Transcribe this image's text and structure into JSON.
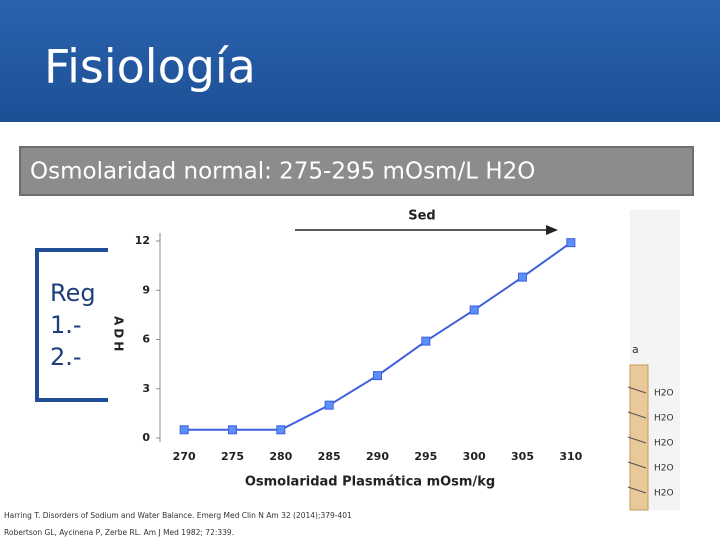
{
  "slide": {
    "title": "Fisiología",
    "banner": "Osmolaridad normal: 275-295 mOsm/L H2O",
    "left_box": [
      "Reg",
      "1.-",
      "2.-"
    ],
    "references": [
      "Harring T. Disorders of Sodium and Water Balance. Emerg Med Clin N Am 32 (2014);379-401",
      "Robertson GL, Aycinena P, Zerbe RL. Am J Med 1982; 72:339."
    ],
    "right_figure": {
      "caption": "a",
      "labels": [
        "H2O",
        "H2O",
        "H2O",
        "H2O",
        "H2O"
      ]
    }
  },
  "chart_data": {
    "type": "line",
    "annotation": "Sed",
    "xlabel": "Osmolaridad Plasmática mOsm/kg",
    "ylabel": "ADH",
    "x": [
      270,
      275,
      280,
      285,
      290,
      295,
      300,
      305,
      310
    ],
    "series": [
      {
        "color": "#3f5fdc",
        "values": [
          0.5,
          0.5,
          0.5,
          2,
          3.8,
          5.9,
          7.8,
          9.8,
          11.9
        ]
      }
    ],
    "xlim": [
      267.5,
      312.5
    ],
    "xticks": [
      270,
      275,
      280,
      285,
      290,
      295,
      300,
      305,
      310
    ],
    "ylim": [
      0,
      12
    ],
    "yticks": [
      0,
      3,
      6,
      9,
      12
    ]
  }
}
